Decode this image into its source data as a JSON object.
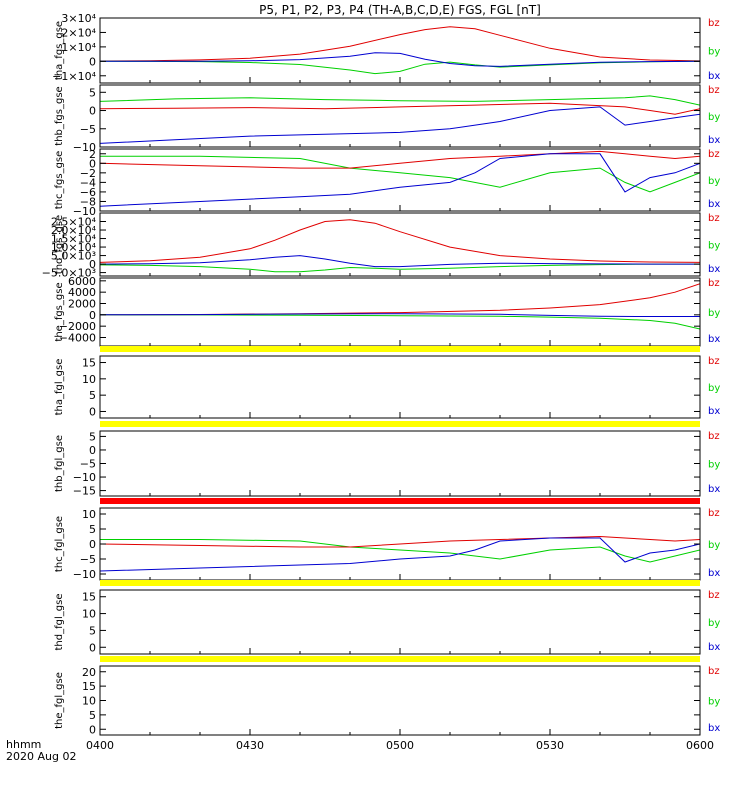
{
  "title": "P5, P1, P2, P3, P4 (TH-A,B,C,D,E) FGS, FGL [nT]",
  "x_axis": {
    "label_line1": "hhmm",
    "label_line2": "2020 Aug 02",
    "range": [
      "04:00",
      "06:00"
    ],
    "ticks": [
      {
        "t": 0,
        "label": "0400"
      },
      {
        "t": 30,
        "label": "0430"
      },
      {
        "t": 60,
        "label": "0500"
      },
      {
        "t": 90,
        "label": "0530"
      },
      {
        "t": 120,
        "label": "0600"
      }
    ]
  },
  "legend": [
    {
      "label": "bz",
      "color": "#e00000"
    },
    {
      "label": "by",
      "color": "#00d000"
    },
    {
      "label": "bx",
      "color": "#0000d0"
    }
  ],
  "chart_data": [
    {
      "id": "tha_fgs_gse",
      "type": "line",
      "ylabel": "tha_fgs_gse",
      "ylim": [
        -15000,
        30000
      ],
      "yticks": [
        {
          "v": 30000,
          "label": "3×10⁴"
        },
        {
          "v": 20000,
          "label": "2×10⁴"
        },
        {
          "v": 10000,
          "label": "1×10⁴"
        },
        {
          "v": 0,
          "label": "0"
        },
        {
          "v": -10000,
          "label": "−1×10⁴"
        }
      ],
      "series": [
        {
          "name": "bz",
          "color": "#e00000",
          "x": [
            0,
            10,
            20,
            30,
            40,
            50,
            60,
            65,
            70,
            75,
            80,
            90,
            100,
            110,
            120
          ],
          "y": [
            200,
            400,
            1000,
            2200,
            5000,
            10500,
            18500,
            22000,
            24000,
            22500,
            18000,
            9000,
            3000,
            900,
            300
          ]
        },
        {
          "name": "by",
          "color": "#00d000",
          "x": [
            0,
            10,
            20,
            30,
            40,
            50,
            55,
            60,
            65,
            70,
            75,
            80,
            90,
            100,
            110,
            120
          ],
          "y": [
            0,
            -50,
            -200,
            -800,
            -2200,
            -6000,
            -8500,
            -7000,
            -2000,
            -500,
            -2500,
            -4000,
            -2500,
            -1000,
            -300,
            0
          ]
        },
        {
          "name": "bx",
          "color": "#0000d0",
          "x": [
            0,
            10,
            20,
            30,
            40,
            50,
            55,
            60,
            65,
            70,
            75,
            80,
            90,
            100,
            110,
            120
          ],
          "y": [
            0,
            0,
            100,
            400,
            1200,
            3500,
            6000,
            5500,
            1500,
            -1500,
            -3000,
            -3500,
            -2000,
            -700,
            -200,
            0
          ]
        }
      ]
    },
    {
      "id": "thb_fgs_gse",
      "type": "line",
      "ylabel": "thb_fgs_gse",
      "ylim": [
        -10,
        7
      ],
      "yticks": [
        {
          "v": 5,
          "label": "5"
        },
        {
          "v": 0,
          "label": "0"
        },
        {
          "v": -5,
          "label": "−5"
        },
        {
          "v": -10,
          "label": "−10"
        }
      ],
      "series": [
        {
          "name": "by",
          "color": "#00d000",
          "x": [
            0,
            15,
            30,
            45,
            60,
            75,
            90,
            105,
            110,
            115,
            120
          ],
          "y": [
            2.5,
            3.2,
            3.5,
            3,
            2.7,
            2.5,
            3,
            3.5,
            4,
            3,
            1.5
          ]
        },
        {
          "name": "bz",
          "color": "#e00000",
          "x": [
            0,
            15,
            30,
            45,
            60,
            75,
            90,
            105,
            110,
            115,
            120
          ],
          "y": [
            0.5,
            0.6,
            0.8,
            0.5,
            1,
            1.5,
            2,
            1,
            0,
            -1,
            0.5
          ]
        },
        {
          "name": "bx",
          "color": "#0000d0",
          "x": [
            0,
            15,
            30,
            45,
            60,
            70,
            80,
            90,
            100,
            105,
            110,
            115,
            120
          ],
          "y": [
            -9,
            -8,
            -7,
            -6.5,
            -6,
            -5,
            -3,
            0,
            1,
            -4,
            -3,
            -2,
            -1
          ]
        }
      ]
    },
    {
      "id": "thc_fgs_gse",
      "type": "line",
      "ylabel": "thc_fgs_gse",
      "ylim": [
        -10,
        3
      ],
      "yticks": [
        {
          "v": 2,
          "label": "2"
        },
        {
          "v": 0,
          "label": "0"
        },
        {
          "v": -2,
          "label": "−2"
        },
        {
          "v": -4,
          "label": "−4"
        },
        {
          "v": -6,
          "label": "−6"
        },
        {
          "v": -8,
          "label": "−8"
        },
        {
          "v": -10,
          "label": "−10"
        }
      ],
      "series": [
        {
          "name": "by",
          "color": "#00d000",
          "x": [
            0,
            20,
            40,
            50,
            60,
            70,
            80,
            90,
            100,
            105,
            110,
            115,
            120
          ],
          "y": [
            1.5,
            1.5,
            1,
            -1,
            -2,
            -3,
            -5,
            -2,
            -1,
            -4,
            -6,
            -4,
            -2
          ]
        },
        {
          "name": "bz",
          "color": "#e00000",
          "x": [
            0,
            20,
            40,
            50,
            60,
            70,
            80,
            90,
            100,
            105,
            110,
            115,
            120
          ],
          "y": [
            0,
            -0.5,
            -1,
            -1,
            0,
            1,
            1.5,
            2,
            2.5,
            2,
            1.5,
            1,
            1.5
          ]
        },
        {
          "name": "bx",
          "color": "#0000d0",
          "x": [
            0,
            20,
            40,
            50,
            60,
            70,
            75,
            80,
            90,
            100,
            105,
            110,
            115,
            120
          ],
          "y": [
            -9,
            -8,
            -7,
            -6.5,
            -5,
            -4,
            -2,
            1,
            2,
            2,
            -6,
            -3,
            -2,
            0
          ]
        }
      ]
    },
    {
      "id": "thd_fgs_gse",
      "type": "line",
      "ylabel": "thd_fgs_gse",
      "ylim": [
        -7000,
        30000
      ],
      "yticks": [
        {
          "v": 25000,
          "label": "2.5×10⁴"
        },
        {
          "v": 20000,
          "label": "2.0×10⁴"
        },
        {
          "v": 15000,
          "label": "1.5×10⁴"
        },
        {
          "v": 10000,
          "label": "1.0×10⁴"
        },
        {
          "v": 5000,
          "label": "5.0×10³"
        },
        {
          "v": 0,
          "label": "0"
        },
        {
          "v": -5000,
          "label": "−5.0×10³"
        }
      ],
      "series": [
        {
          "name": "bz",
          "color": "#e00000",
          "x": [
            0,
            10,
            20,
            30,
            35,
            40,
            45,
            50,
            55,
            60,
            70,
            80,
            90,
            100,
            110,
            120
          ],
          "y": [
            1000,
            2000,
            4000,
            9000,
            14000,
            20000,
            25000,
            26000,
            24000,
            19000,
            10000,
            5000,
            3000,
            1800,
            1200,
            1000
          ]
        },
        {
          "name": "by",
          "color": "#00d000",
          "x": [
            0,
            10,
            20,
            30,
            35,
            40,
            45,
            50,
            55,
            60,
            70,
            80,
            90,
            100,
            110,
            120
          ],
          "y": [
            -500,
            -800,
            -1500,
            -3000,
            -4500,
            -4500,
            -3500,
            -2000,
            -2500,
            -3000,
            -2500,
            -1500,
            -800,
            -300,
            0,
            0
          ]
        },
        {
          "name": "bx",
          "color": "#0000d0",
          "x": [
            0,
            10,
            20,
            30,
            35,
            40,
            45,
            50,
            55,
            60,
            70,
            80,
            90,
            100,
            110,
            120
          ],
          "y": [
            0,
            200,
            800,
            2500,
            4000,
            5000,
            3000,
            500,
            -1500,
            -1500,
            -200,
            500,
            300,
            100,
            0,
            0
          ]
        }
      ]
    },
    {
      "id": "the_fgs_gse",
      "type": "line",
      "ylabel": "the_fgs_gse",
      "ylim": [
        -5500,
        6500
      ],
      "yticks": [
        {
          "v": 6000,
          "label": "6000"
        },
        {
          "v": 4000,
          "label": "4000"
        },
        {
          "v": 2000,
          "label": "2000"
        },
        {
          "v": 0,
          "label": "0"
        },
        {
          "v": -2000,
          "label": "−2000"
        },
        {
          "v": -4000,
          "label": "−4000"
        }
      ],
      "series": [
        {
          "name": "bz",
          "color": "#e00000",
          "x": [
            0,
            20,
            40,
            60,
            80,
            90,
            100,
            110,
            115,
            120
          ],
          "y": [
            0,
            60,
            200,
            400,
            800,
            1200,
            1800,
            3000,
            4000,
            5500
          ]
        },
        {
          "name": "by",
          "color": "#00d000",
          "x": [
            0,
            20,
            40,
            60,
            80,
            90,
            100,
            110,
            115,
            120
          ],
          "y": [
            0,
            -20,
            -80,
            -150,
            -250,
            -400,
            -600,
            -1000,
            -1500,
            -2500
          ]
        },
        {
          "name": "bx",
          "color": "#0000d0",
          "x": [
            0,
            20,
            40,
            60,
            80,
            90,
            100,
            110,
            120
          ],
          "y": [
            0,
            50,
            150,
            200,
            100,
            -100,
            -250,
            -300,
            -300
          ]
        }
      ]
    },
    {
      "id": "tha_fgl_gse",
      "type": "line",
      "ylabel": "tha_fgl_gse",
      "band": "#ffff00",
      "ylim": [
        -2,
        17
      ],
      "yticks": [
        {
          "v": 15,
          "label": "15"
        },
        {
          "v": 10,
          "label": "10"
        },
        {
          "v": 5,
          "label": "5"
        },
        {
          "v": 0,
          "label": "0"
        }
      ],
      "series": []
    },
    {
      "id": "thb_fgl_gse",
      "type": "line",
      "ylabel": "thb_fgl_gse",
      "band": "#ffff00",
      "ylim": [
        -17,
        7
      ],
      "yticks": [
        {
          "v": 5,
          "label": "5"
        },
        {
          "v": 0,
          "label": "0"
        },
        {
          "v": -5,
          "label": "−5"
        },
        {
          "v": -10,
          "label": "−10"
        },
        {
          "v": -15,
          "label": "−15"
        }
      ],
      "series": []
    },
    {
      "id": "thc_fgl_gse",
      "type": "line",
      "ylabel": "thc_fgl_gse",
      "band": "#ff0000",
      "ylim": [
        -12,
        12
      ],
      "yticks": [
        {
          "v": 10,
          "label": "10"
        },
        {
          "v": 5,
          "label": "5"
        },
        {
          "v": 0,
          "label": "0"
        },
        {
          "v": -5,
          "label": "−5"
        },
        {
          "v": -10,
          "label": "−10"
        }
      ],
      "series": [
        {
          "name": "by",
          "color": "#00d000",
          "x": [
            0,
            20,
            40,
            50,
            60,
            70,
            80,
            90,
            100,
            105,
            110,
            115,
            120
          ],
          "y": [
            1.5,
            1.5,
            1,
            -1,
            -2,
            -3,
            -5,
            -2,
            -1,
            -4,
            -6,
            -4,
            -2
          ]
        },
        {
          "name": "bz",
          "color": "#e00000",
          "x": [
            0,
            20,
            40,
            50,
            60,
            70,
            80,
            90,
            100,
            105,
            110,
            115,
            120
          ],
          "y": [
            0,
            -0.5,
            -1,
            -1,
            0,
            1,
            1.5,
            2,
            2.5,
            2,
            1.5,
            1,
            1.5
          ]
        },
        {
          "name": "bx",
          "color": "#0000d0",
          "x": [
            0,
            20,
            40,
            50,
            60,
            70,
            75,
            80,
            90,
            100,
            105,
            110,
            115,
            120
          ],
          "y": [
            -9,
            -8,
            -7,
            -6.5,
            -5,
            -4,
            -2,
            1,
            2,
            2,
            -6,
            -3,
            -2,
            0
          ]
        }
      ]
    },
    {
      "id": "thd_fgl_gse",
      "type": "line",
      "ylabel": "thd_fgl_gse",
      "band": "#ffff00",
      "ylim": [
        -2,
        17
      ],
      "yticks": [
        {
          "v": 15,
          "label": "15"
        },
        {
          "v": 10,
          "label": "10"
        },
        {
          "v": 5,
          "label": "5"
        },
        {
          "v": 0,
          "label": "0"
        }
      ],
      "series": []
    },
    {
      "id": "the_fgl_gse",
      "type": "line",
      "ylabel": "the_fgl_gse",
      "band": "#ffff00",
      "ylim": [
        -2,
        22
      ],
      "yticks": [
        {
          "v": 20,
          "label": "20"
        },
        {
          "v": 15,
          "label": "15"
        },
        {
          "v": 10,
          "label": "10"
        },
        {
          "v": 5,
          "label": "5"
        },
        {
          "v": 0,
          "label": "0"
        }
      ],
      "series": []
    }
  ]
}
